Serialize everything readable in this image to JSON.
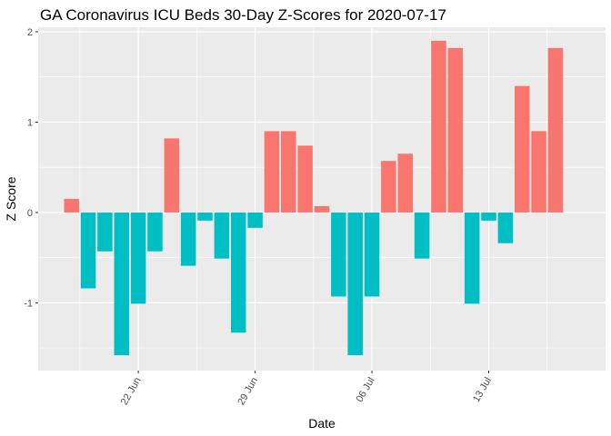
{
  "chart_data": {
    "type": "bar",
    "title": "GA Coronavirus ICU Beds 30-Day Z-Scores for 2020-07-17",
    "xlabel": "Date",
    "ylabel": "Z Score",
    "ylim": [
      -1.75,
      2.05
    ],
    "y_ticks": [
      -1,
      0,
      1,
      2
    ],
    "x_ticks": [
      {
        "label": "22 Jun",
        "date": "2020-06-22"
      },
      {
        "label": "29 Jun",
        "date": "2020-06-29"
      },
      {
        "label": "06 Jul",
        "date": "2020-07-06"
      },
      {
        "label": "13 Jul",
        "date": "2020-07-13"
      }
    ],
    "x_range": [
      "2020-06-16",
      "2020-07-20"
    ],
    "positive_color": "#F8766D",
    "negative_color": "#00BFC4",
    "grid": true,
    "dates": [
      "2020-06-18",
      "2020-06-19",
      "2020-06-20",
      "2020-06-21",
      "2020-06-22",
      "2020-06-23",
      "2020-06-24",
      "2020-06-25",
      "2020-06-26",
      "2020-06-27",
      "2020-06-28",
      "2020-06-29",
      "2020-06-30",
      "2020-07-01",
      "2020-07-02",
      "2020-07-03",
      "2020-07-04",
      "2020-07-05",
      "2020-07-06",
      "2020-07-07",
      "2020-07-08",
      "2020-07-09",
      "2020-07-10",
      "2020-07-11",
      "2020-07-12",
      "2020-07-13",
      "2020-07-14",
      "2020-07-15",
      "2020-07-16",
      "2020-07-17"
    ],
    "values": [
      0.15,
      -0.84,
      -0.43,
      -1.58,
      -1.01,
      -0.43,
      0.82,
      -0.59,
      -0.09,
      -0.51,
      -1.33,
      -0.17,
      0.9,
      0.9,
      0.74,
      0.07,
      -0.93,
      -1.58,
      -0.93,
      0.57,
      0.65,
      -0.51,
      1.9,
      1.82,
      -1.01,
      -0.09,
      -0.34,
      1.4,
      0.9,
      1.82
    ]
  }
}
